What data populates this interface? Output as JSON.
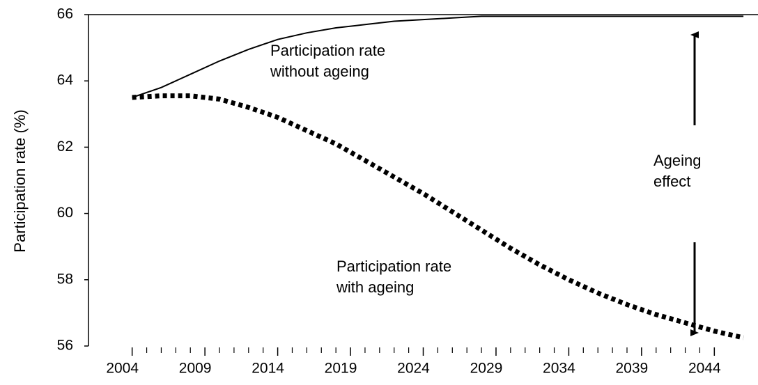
{
  "chart_data": {
    "type": "line",
    "y_label": "Participation rate (%)",
    "x": [
      2004,
      2006,
      2008,
      2010,
      2012,
      2014,
      2016,
      2018,
      2020,
      2022,
      2024,
      2026,
      2028,
      2030,
      2032,
      2034,
      2036,
      2038,
      2040,
      2042,
      2044,
      2046
    ],
    "series": [
      {
        "name": "Participation rate without ageing",
        "color": "#000000",
        "style": "solid",
        "values": [
          63.5,
          63.8,
          64.2,
          64.6,
          64.95,
          65.25,
          65.45,
          65.6,
          65.7,
          65.8,
          65.85,
          65.9,
          65.95,
          65.95,
          65.95,
          65.95,
          65.95,
          65.95,
          65.95,
          65.95,
          65.95,
          65.95
        ]
      },
      {
        "name": "Participation rate with ageing",
        "color": "#000000",
        "style": "dotted",
        "values": [
          63.5,
          63.55,
          63.55,
          63.45,
          63.2,
          62.9,
          62.5,
          62.1,
          61.6,
          61.1,
          60.6,
          60.05,
          59.5,
          58.95,
          58.45,
          58.0,
          57.6,
          57.25,
          56.95,
          56.7,
          56.45,
          56.25
        ]
      }
    ],
    "annotations": [
      "Participation rate\nwithout ageing",
      "Participation rate\nwith ageing",
      "Ageing\neffect"
    ],
    "xlim": [
      2001,
      2047
    ],
    "xticks": [
      2004,
      2009,
      2014,
      2019,
      2024,
      2029,
      2034,
      2039,
      2044
    ],
    "ylim": [
      56,
      66
    ],
    "yticks": [
      56,
      58,
      60,
      62,
      64,
      66
    ]
  }
}
